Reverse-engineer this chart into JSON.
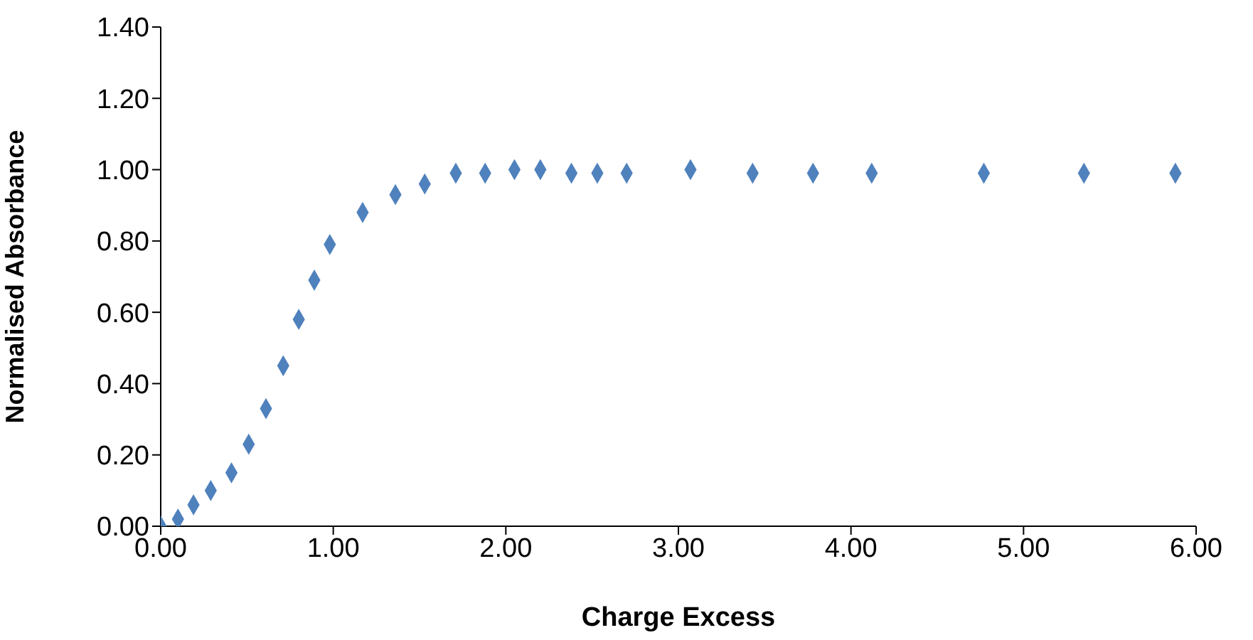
{
  "chart_data": {
    "type": "scatter",
    "xlabel": "Charge Excess",
    "ylabel": "Normalised Absorbance",
    "x": [
      0,
      0.1,
      0.19,
      0.29,
      0.41,
      0.51,
      0.61,
      0.71,
      0.8,
      0.89,
      0.98,
      1.17,
      1.36,
      1.53,
      1.71,
      1.88,
      2.05,
      2.2,
      2.38,
      2.53,
      2.7,
      3.07,
      3.43,
      3.78,
      4.12,
      4.77,
      5.35,
      5.88
    ],
    "series": [
      {
        "color": "#4f81bd",
        "values": [
          0,
          0.02,
          0.06,
          0.1,
          0.15,
          0.23,
          0.33,
          0.45,
          0.58,
          0.69,
          0.79,
          0.88,
          0.93,
          0.96,
          0.99,
          0.99,
          1.0,
          1.0,
          0.99,
          0.99,
          0.99,
          1.0,
          0.99,
          0.99,
          0.99,
          0.99,
          0.99,
          0.99
        ]
      }
    ],
    "xlim": [
      0,
      6
    ],
    "ylim": [
      0,
      1.4
    ],
    "xticks": [
      {
        "value": 0,
        "label": "0.00"
      },
      {
        "value": 1,
        "label": "1.00"
      },
      {
        "value": 2,
        "label": "2.00"
      },
      {
        "value": 3,
        "label": "3.00"
      },
      {
        "value": 4,
        "label": "4.00"
      },
      {
        "value": 5,
        "label": "5.00"
      },
      {
        "value": 6,
        "label": "6.00"
      }
    ],
    "yticks": [
      {
        "value": 0,
        "label": "0.00"
      },
      {
        "value": 0.2,
        "label": "0.20"
      },
      {
        "value": 0.4,
        "label": "0.40"
      },
      {
        "value": 0.6,
        "label": "0.60"
      },
      {
        "value": 0.8,
        "label": "0.80"
      },
      {
        "value": 1,
        "label": "1.00"
      },
      {
        "value": 1.2,
        "label": "1.20"
      },
      {
        "value": 1.4,
        "label": "1.40"
      }
    ],
    "marker": "diamond",
    "grid": false,
    "legend": false
  }
}
